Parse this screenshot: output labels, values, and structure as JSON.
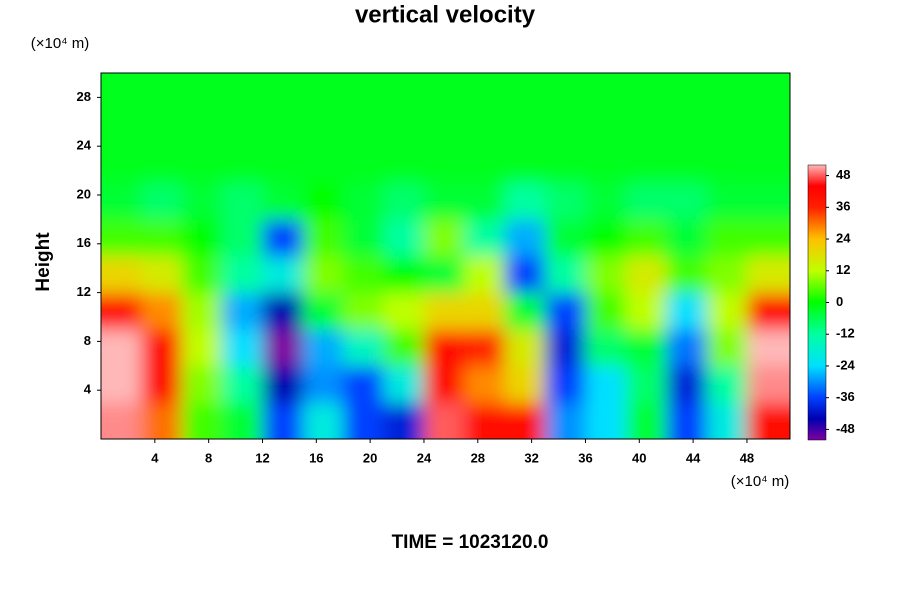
{
  "chart_data": {
    "type": "contour",
    "title": "vertical velocity",
    "ylabel": "Height",
    "x_unit": "(×10⁴ m)",
    "y_unit": "(×10⁴ m)",
    "footer": "TIME = 1023120.0",
    "xlim": [
      0,
      51.2
    ],
    "xticks": [
      4,
      8,
      12,
      16,
      20,
      24,
      28,
      32,
      36,
      40,
      44,
      48
    ],
    "ylim": [
      0,
      30
    ],
    "yticks": [
      4,
      8,
      12,
      16,
      20,
      24,
      28
    ],
    "clim": [
      -52,
      52
    ],
    "cticks": [
      -48,
      -36,
      -24,
      -12,
      0,
      12,
      24,
      36,
      48
    ],
    "colormap": {
      "values": [
        -52,
        -44,
        -36,
        -24,
        -12,
        0,
        12,
        24,
        36,
        44,
        52
      ],
      "colors": [
        "#8000a0",
        "#0000b0",
        "#0040ff",
        "#00e0ff",
        "#00ffa0",
        "#00ff00",
        "#c0ff00",
        "#ffc000",
        "#ff2000",
        "#ff0000",
        "#ffb8b8"
      ]
    },
    "x": [
      1.5,
      4.5,
      7.5,
      10.5,
      13.5,
      16.5,
      19.5,
      22.5,
      25.5,
      28.5,
      31.5,
      34.5,
      37.5,
      40.5,
      43.5,
      46.5,
      49.5
    ],
    "y": [
      1.5,
      4.5,
      7.5,
      10.5,
      13.5,
      16.5,
      19.5,
      22.5,
      25.5,
      28.5
    ],
    "z": [
      [
        50,
        30,
        4,
        -4,
        -36,
        -20,
        -36,
        -40,
        48,
        40,
        40,
        -30,
        -24,
        -4,
        -36,
        -20,
        40
      ],
      [
        52,
        40,
        8,
        -12,
        -44,
        -30,
        -36,
        -20,
        40,
        28,
        20,
        -36,
        -24,
        -8,
        -40,
        -12,
        50
      ],
      [
        52,
        40,
        12,
        -24,
        -52,
        -28,
        -16,
        4,
        40,
        36,
        16,
        -40,
        -8,
        -4,
        -32,
        8,
        52
      ],
      [
        40,
        28,
        10,
        -28,
        -44,
        -4,
        8,
        12,
        20,
        20,
        -4,
        -36,
        4,
        12,
        -24,
        12,
        44
      ],
      [
        20,
        16,
        4,
        -12,
        -20,
        8,
        4,
        0,
        -4,
        12,
        -36,
        -12,
        8,
        16,
        4,
        8,
        16
      ],
      [
        4,
        4,
        0,
        -8,
        -36,
        4,
        -4,
        -12,
        8,
        -12,
        -28,
        -4,
        0,
        4,
        -4,
        4,
        4
      ],
      [
        -4,
        -8,
        -4,
        -8,
        -4,
        0,
        -4,
        -8,
        -4,
        -4,
        -12,
        -8,
        -4,
        -8,
        -8,
        -4,
        -4
      ],
      [
        -2,
        -2,
        -2,
        -2,
        -2,
        -2,
        -2,
        -2,
        -2,
        -2,
        -2,
        -2,
        -2,
        -2,
        -2,
        -2,
        -2
      ],
      [
        -2,
        -2,
        -2,
        -2,
        -2,
        -2,
        -2,
        -2,
        -2,
        -2,
        -2,
        -2,
        -2,
        -2,
        -2,
        -2,
        -2
      ],
      [
        -2,
        -2,
        -2,
        -2,
        -2,
        -2,
        -2,
        -2,
        -2,
        -2,
        -2,
        -2,
        -2,
        -2,
        -2,
        -2,
        -2
      ]
    ]
  }
}
